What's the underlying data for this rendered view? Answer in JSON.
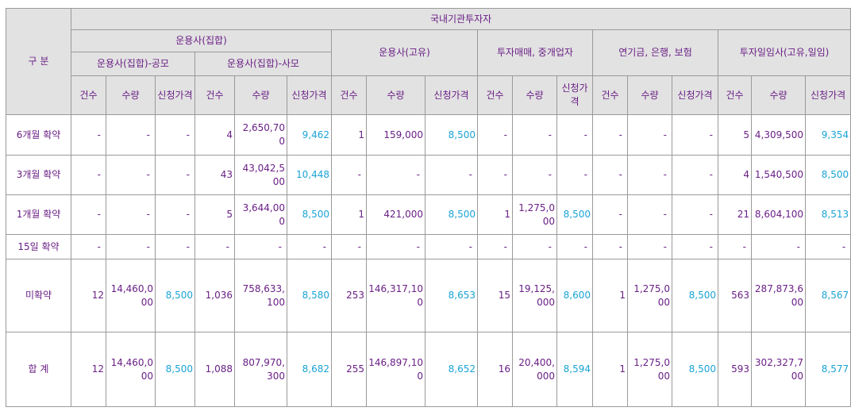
{
  "headers": {
    "category": "구 분",
    "domestic": "국내기관투자자",
    "am_group": "운용사(집합)",
    "am_public": "운용사(집합)-공모",
    "am_private": "운용사(집합)-사모",
    "am_own": "운용사(고유)",
    "broker": "투자매매, 중개업자",
    "pension": "연기금, 은행, 보험",
    "discretionary": "투자일임사(고유,일임)",
    "count": "건수",
    "quantity": "수량",
    "price": "신청가격"
  },
  "rows": [
    {
      "label": "6개월 확약",
      "cells": [
        "-",
        "-",
        "-",
        "4",
        "2,650,700",
        "9,462",
        "1",
        "159,000",
        "8,500",
        "-",
        "-",
        "-",
        "-",
        "-",
        "-",
        "5",
        "4,309,500",
        "9,354"
      ]
    },
    {
      "label": "3개월 확약",
      "cells": [
        "-",
        "-",
        "-",
        "43",
        "43,042,500",
        "10,448",
        "-",
        "-",
        "-",
        "-",
        "-",
        "-",
        "-",
        "-",
        "-",
        "4",
        "1,540,500",
        "8,500"
      ]
    },
    {
      "label": "1개월 확약",
      "cells": [
        "-",
        "-",
        "-",
        "5",
        "3,644,000",
        "8,500",
        "1",
        "421,000",
        "8,500",
        "1",
        "1,275,000",
        "8,500",
        "-",
        "-",
        "-",
        "21",
        "8,604,100",
        "8,513"
      ]
    },
    {
      "label": "15일 확약",
      "cells": [
        "-",
        "-",
        "-",
        "-",
        "-",
        "-",
        "-",
        "-",
        "-",
        "-",
        "-",
        "-",
        "-",
        "-",
        "-",
        "-",
        "-",
        "-"
      ]
    },
    {
      "label": "미확약",
      "cells": [
        "12",
        "14,460,000",
        "8,500",
        "1,036",
        "758,633,100",
        "8,580",
        "253",
        "146,317,100",
        "8,653",
        "15",
        "19,125,000",
        "8,600",
        "1",
        "1,275,000",
        "8,500",
        "563",
        "287,873,600",
        "8,567"
      ]
    },
    {
      "label": "합 계",
      "cells": [
        "12",
        "14,460,000",
        "8,500",
        "1,088",
        "807,970,300",
        "8,682",
        "255",
        "146,897,100",
        "8,652",
        "16",
        "20,400,000",
        "8,594",
        "1",
        "1,275,000",
        "8,500",
        "593",
        "302,327,700",
        "8,577"
      ]
    }
  ]
}
